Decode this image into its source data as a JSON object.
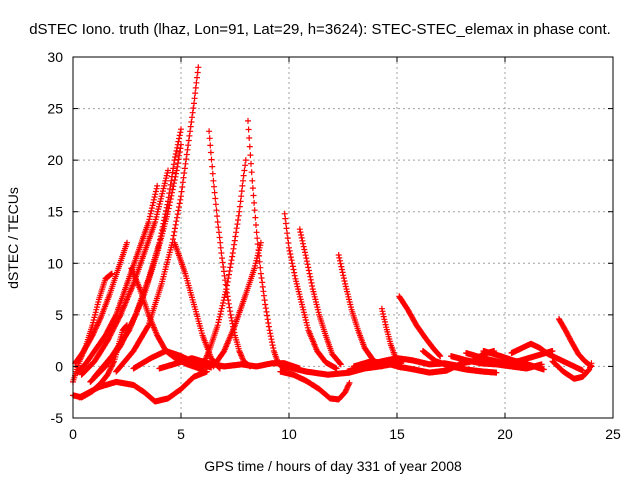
{
  "chart_data": {
    "type": "scatter",
    "title": "dSTEC Iono. truth (lhaz, Lon=91, Lat=29, h=3624): STEC-STEC_elemax in phase cont.",
    "xlabel": "GPS time / hours of day 331 of year 2008",
    "ylabel": "dSTEC  / TECUs",
    "xlim": [
      0,
      25
    ],
    "ylim": [
      -5,
      30
    ],
    "xticks": [
      0,
      5,
      10,
      15,
      20,
      25
    ],
    "yticks": [
      -5,
      0,
      5,
      10,
      15,
      20,
      25,
      30
    ],
    "grid": true,
    "marker": "+",
    "color": "#ff0000",
    "arcs": [
      [
        [
          0.0,
          -2.8
        ],
        [
          0.4,
          -3.0
        ],
        [
          0.9,
          -2.4
        ],
        [
          1.3,
          -1.6
        ],
        [
          1.6,
          -0.8
        ],
        [
          1.9,
          0.5
        ],
        [
          2.1,
          2.0
        ],
        [
          2.3,
          3.5
        ],
        [
          2.5,
          4.0
        ]
      ],
      [
        [
          0.0,
          -1.5
        ],
        [
          0.3,
          0.5
        ],
        [
          0.6,
          2.0
        ],
        [
          0.9,
          4.0
        ],
        [
          1.2,
          6.5
        ],
        [
          1.5,
          8.5
        ],
        [
          1.8,
          9.0
        ]
      ],
      [
        [
          0.1,
          0.3
        ],
        [
          0.5,
          1.5
        ],
        [
          0.9,
          3.0
        ],
        [
          1.3,
          4.8
        ],
        [
          1.7,
          7.0
        ],
        [
          2.1,
          9.5
        ],
        [
          2.5,
          12.0
        ]
      ],
      [
        [
          0.2,
          -0.6
        ],
        [
          0.6,
          0.3
        ],
        [
          1.0,
          1.5
        ],
        [
          1.5,
          3.0
        ],
        [
          2.0,
          5.0
        ],
        [
          2.5,
          8.0
        ],
        [
          3.0,
          11.0
        ],
        [
          3.5,
          14.0
        ],
        [
          3.9,
          17.5
        ]
      ],
      [
        [
          0.4,
          -0.8
        ],
        [
          1.0,
          0.5
        ],
        [
          1.6,
          2.5
        ],
        [
          2.2,
          5.0
        ],
        [
          2.8,
          8.0
        ],
        [
          3.3,
          11.0
        ],
        [
          3.8,
          14.0
        ],
        [
          4.1,
          16.5
        ],
        [
          4.4,
          19.0
        ]
      ],
      [
        [
          0.8,
          -1.5
        ],
        [
          1.5,
          0.0
        ],
        [
          2.2,
          2.0
        ],
        [
          2.9,
          5.0
        ],
        [
          3.5,
          8.5
        ],
        [
          4.0,
          12.0
        ],
        [
          4.4,
          16.0
        ],
        [
          4.7,
          20.0
        ],
        [
          5.0,
          23.0
        ]
      ],
      [
        [
          1.0,
          -1.0
        ],
        [
          1.8,
          1.0
        ],
        [
          2.6,
          3.5
        ],
        [
          3.3,
          7.0
        ],
        [
          3.9,
          11.0
        ],
        [
          4.4,
          15.0
        ],
        [
          4.8,
          19.0
        ],
        [
          5.0,
          21.5
        ]
      ],
      [
        [
          2.0,
          -0.5
        ],
        [
          2.8,
          1.5
        ],
        [
          3.5,
          4.0
        ],
        [
          4.1,
          8.0
        ],
        [
          4.6,
          12.0
        ],
        [
          5.0,
          16.5
        ],
        [
          5.3,
          21.0
        ],
        [
          5.6,
          25.5
        ],
        [
          5.8,
          29.0
        ]
      ],
      [
        [
          6.3,
          22.8
        ],
        [
          6.5,
          18.0
        ],
        [
          6.7,
          14.0
        ],
        [
          6.9,
          10.5
        ],
        [
          7.1,
          7.5
        ],
        [
          7.3,
          5.0
        ],
        [
          7.5,
          3.0
        ],
        [
          7.7,
          1.5
        ],
        [
          7.9,
          0.5
        ],
        [
          8.2,
          0.0
        ]
      ],
      [
        [
          8.1,
          23.8
        ],
        [
          8.3,
          18.0
        ],
        [
          8.5,
          13.0
        ],
        [
          8.7,
          9.0
        ],
        [
          8.9,
          6.0
        ],
        [
          9.1,
          3.5
        ],
        [
          9.3,
          1.5
        ],
        [
          9.5,
          0.3
        ],
        [
          9.8,
          -0.3
        ]
      ],
      [
        [
          4.7,
          12.0
        ],
        [
          5.2,
          9.0
        ],
        [
          5.6,
          6.0
        ],
        [
          6.0,
          3.0
        ],
        [
          6.4,
          0.8
        ],
        [
          6.8,
          -0.2
        ]
      ],
      [
        [
          2.7,
          9.5
        ],
        [
          3.1,
          7.5
        ],
        [
          3.5,
          5.0
        ],
        [
          3.9,
          3.0
        ],
        [
          4.3,
          1.5
        ],
        [
          4.8,
          0.7
        ],
        [
          5.3,
          0.2
        ],
        [
          6.0,
          -0.3
        ]
      ],
      [
        [
          5.9,
          -0.4
        ],
        [
          6.3,
          1.5
        ],
        [
          6.7,
          4.0
        ],
        [
          7.1,
          7.5
        ],
        [
          7.4,
          11.0
        ],
        [
          7.7,
          15.0
        ],
        [
          7.9,
          18.5
        ],
        [
          8.0,
          20.0
        ]
      ],
      [
        [
          6.5,
          0.0
        ],
        [
          7.0,
          1.5
        ],
        [
          7.5,
          4.0
        ],
        [
          8.0,
          7.0
        ],
        [
          8.4,
          9.5
        ],
        [
          8.7,
          12.0
        ]
      ],
      [
        [
          9.8,
          14.8
        ],
        [
          10.0,
          11.5
        ],
        [
          10.3,
          8.5
        ],
        [
          10.6,
          6.0
        ],
        [
          10.9,
          3.5
        ],
        [
          11.3,
          1.5
        ],
        [
          11.7,
          0.4
        ],
        [
          12.2,
          -0.2
        ]
      ],
      [
        [
          10.5,
          13.3
        ],
        [
          10.8,
          10.5
        ],
        [
          11.1,
          7.5
        ],
        [
          11.4,
          5.0
        ],
        [
          11.7,
          3.0
        ],
        [
          12.0,
          1.2
        ],
        [
          12.4,
          0.2
        ]
      ],
      [
        [
          12.3,
          10.8
        ],
        [
          12.6,
          8.0
        ],
        [
          12.9,
          5.5
        ],
        [
          13.2,
          3.5
        ],
        [
          13.5,
          1.8
        ],
        [
          13.9,
          0.6
        ],
        [
          14.3,
          0.0
        ]
      ],
      [
        [
          14.3,
          5.6
        ],
        [
          14.5,
          3.8
        ],
        [
          14.7,
          2.2
        ],
        [
          14.9,
          1.0
        ],
        [
          15.2,
          0.3
        ]
      ],
      [
        [
          15.1,
          6.8
        ],
        [
          15.5,
          5.5
        ],
        [
          15.9,
          4.0
        ],
        [
          16.3,
          2.8
        ],
        [
          16.7,
          1.7
        ],
        [
          17.0,
          1.0
        ]
      ],
      [
        [
          15.0,
          0.0
        ],
        [
          15.8,
          -0.3
        ],
        [
          16.5,
          -0.6
        ],
        [
          17.3,
          -0.4
        ],
        [
          18.0,
          0.3
        ],
        [
          18.5,
          0.5
        ],
        [
          19.0,
          1.2
        ],
        [
          19.5,
          1.5
        ]
      ],
      [
        [
          16.2,
          1.5
        ],
        [
          16.8,
          0.5
        ],
        [
          17.5,
          0.0
        ],
        [
          18.2,
          -0.3
        ],
        [
          19.0,
          -0.5
        ],
        [
          19.6,
          -0.6
        ]
      ],
      [
        [
          18.2,
          1.3
        ],
        [
          19.0,
          0.8
        ],
        [
          19.8,
          0.4
        ],
        [
          20.6,
          0.5
        ],
        [
          21.4,
          1.0
        ],
        [
          22.2,
          1.5
        ]
      ],
      [
        [
          19.0,
          1.5
        ],
        [
          19.8,
          1.0
        ],
        [
          20.5,
          0.5
        ],
        [
          21.2,
          0.1
        ],
        [
          21.8,
          -0.3
        ]
      ],
      [
        [
          20.3,
          1.3
        ],
        [
          20.8,
          1.8
        ],
        [
          21.2,
          2.2
        ],
        [
          21.6,
          1.8
        ],
        [
          22.0,
          1.2
        ],
        [
          22.6,
          0.6
        ],
        [
          23.2,
          0.0
        ],
        [
          23.6,
          -0.4
        ]
      ],
      [
        [
          22.5,
          4.6
        ],
        [
          22.8,
          3.5
        ],
        [
          23.1,
          2.3
        ],
        [
          23.4,
          1.2
        ],
        [
          23.7,
          0.5
        ],
        [
          24.0,
          0.0
        ]
      ],
      [
        [
          22.2,
          0.5
        ],
        [
          22.7,
          -0.5
        ],
        [
          23.2,
          -1.2
        ],
        [
          23.6,
          -1.0
        ],
        [
          23.9,
          -0.3
        ],
        [
          24.0,
          0.3
        ]
      ],
      [
        [
          0.3,
          -3.0
        ],
        [
          1.2,
          -2.0
        ],
        [
          2.0,
          -1.5
        ],
        [
          2.8,
          -1.8
        ],
        [
          3.3,
          -2.5
        ],
        [
          3.8,
          -3.4
        ],
        [
          4.4,
          -3.1
        ],
        [
          5.0,
          -2.2
        ],
        [
          5.6,
          -1.0
        ],
        [
          6.2,
          -0.5
        ]
      ],
      [
        [
          2.8,
          -0.2
        ],
        [
          3.6,
          0.8
        ],
        [
          4.3,
          1.5
        ],
        [
          5.0,
          1.0
        ],
        [
          5.7,
          0.3
        ],
        [
          6.4,
          -0.1
        ]
      ],
      [
        [
          4.0,
          -0.2
        ],
        [
          4.8,
          0.3
        ],
        [
          5.5,
          0.8
        ],
        [
          6.3,
          0.3
        ],
        [
          7.0,
          0.0
        ],
        [
          7.8,
          0.2
        ],
        [
          8.5,
          0.0
        ],
        [
          9.2,
          0.3
        ],
        [
          9.8,
          0.3
        ],
        [
          10.5,
          -0.2
        ]
      ],
      [
        [
          9.6,
          -0.5
        ],
        [
          10.2,
          -0.8
        ],
        [
          10.8,
          -1.4
        ],
        [
          11.4,
          -2.2
        ],
        [
          11.9,
          -3.1
        ],
        [
          12.3,
          -3.2
        ],
        [
          12.6,
          -2.5
        ],
        [
          12.8,
          -1.6
        ]
      ],
      [
        [
          9.8,
          0.0
        ],
        [
          10.8,
          -0.5
        ],
        [
          11.8,
          -0.8
        ],
        [
          12.8,
          -0.6
        ],
        [
          13.5,
          -0.2
        ],
        [
          14.2,
          0.0
        ],
        [
          15.0,
          0.3
        ]
      ],
      [
        [
          12.7,
          -0.5
        ],
        [
          13.5,
          0.0
        ],
        [
          14.3,
          0.5
        ],
        [
          15.0,
          0.8
        ],
        [
          15.7,
          0.6
        ],
        [
          16.5,
          0.2
        ],
        [
          17.2,
          0.3
        ],
        [
          18.0,
          0.0
        ]
      ],
      [
        [
          13.0,
          0.0
        ],
        [
          13.8,
          0.5
        ],
        [
          14.5,
          0.3
        ],
        [
          15.2,
          -0.1
        ]
      ],
      [
        [
          17.5,
          1.0
        ],
        [
          18.2,
          0.6
        ],
        [
          18.9,
          0.3
        ],
        [
          19.6,
          0.2
        ],
        [
          20.3,
          0.0
        ],
        [
          21.0,
          -0.2
        ],
        [
          21.7,
          0.2
        ]
      ]
    ]
  }
}
